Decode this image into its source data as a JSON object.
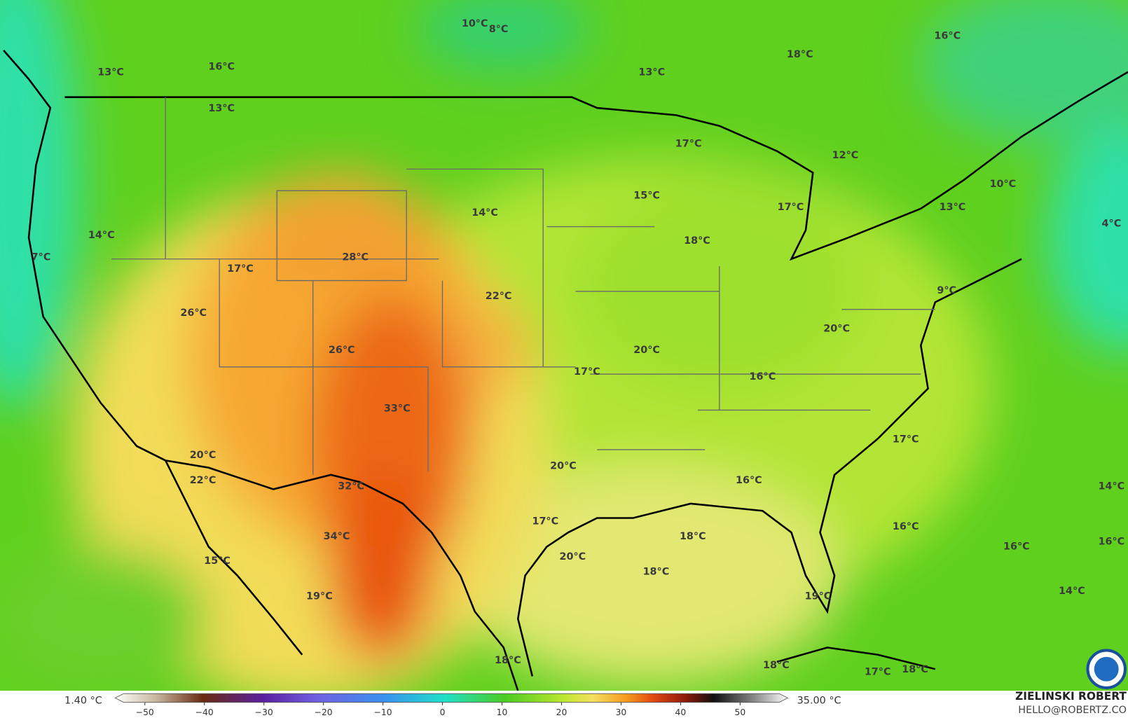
{
  "map": {
    "labels": [
      "10°C",
      "8°C",
      "16°C",
      "18°C",
      "13°C",
      "16°C",
      "13°C",
      "13°C",
      "17°C",
      "12°C",
      "10°C",
      "15°C",
      "14°C",
      "17°C",
      "13°C",
      "14°C",
      "4°C",
      "7°C",
      "28°C",
      "18°C",
      "17°C",
      "22°C",
      "9°C",
      "26°C",
      "20°C",
      "26°C",
      "20°C",
      "17°C",
      "16°C",
      "33°C",
      "17°C",
      "20°C",
      "20°C",
      "16°C",
      "22°C",
      "14°C",
      "32°C",
      "17°C",
      "16°C",
      "34°C",
      "18°C",
      "16°C",
      "16°C",
      "20°C",
      "15°C",
      "18°C",
      "14°C",
      "19°C",
      "19°C",
      "18°C",
      "18°C",
      "17°C",
      "18°C"
    ]
  },
  "colorbar": {
    "min_label": "1.40 °C",
    "max_label": "35.00 °C",
    "lim": [
      -55,
      58
    ],
    "ticks": [
      {
        "value": -50,
        "label": "−50"
      },
      {
        "value": -40,
        "label": "−40"
      },
      {
        "value": -30,
        "label": "−30"
      },
      {
        "value": -20,
        "label": "−20"
      },
      {
        "value": -10,
        "label": "−10"
      },
      0,
      10,
      20,
      30,
      40,
      50
    ]
  },
  "credit": {
    "author": "ZIELINSKI ROBERT",
    "email": "HELLO@ROBERTZ.CO"
  }
}
